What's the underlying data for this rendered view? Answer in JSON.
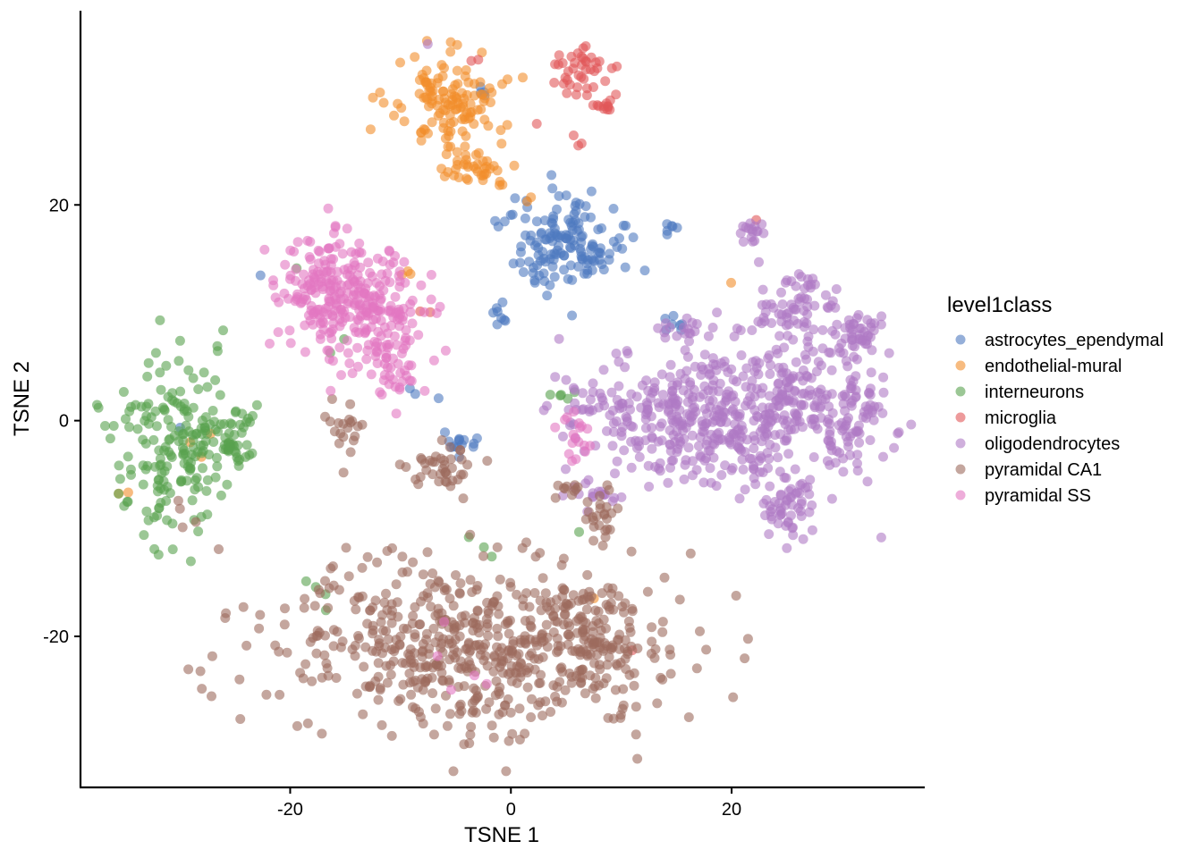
{
  "chart_data": {
    "type": "scatter",
    "title": "",
    "xlabel": "TSNE 1",
    "ylabel": "TSNE 2",
    "xlim": [
      -39,
      37.5
    ],
    "ylim": [
      -34,
      38
    ],
    "x_ticks": [
      -20,
      0,
      20
    ],
    "y_ticks": [
      -20,
      0,
      20
    ],
    "x_tick_labels": [
      "-20",
      "0",
      "20"
    ],
    "y_tick_labels": [
      "-20",
      "0",
      "20"
    ],
    "grid": false,
    "legend_title": "level1class",
    "legend_position": "right",
    "point_alpha": 0.6,
    "series": [
      {
        "name": "astrocytes_ependymal",
        "color": "#4E79C0",
        "clusters": [
          {
            "cx": 5.0,
            "cy": 16.5,
            "sx": 2.6,
            "sy": 2.3,
            "n": 150
          },
          {
            "cx": -1.0,
            "cy": 9.5,
            "sx": 0.3,
            "sy": 0.7,
            "n": 8
          },
          {
            "cx": -4.5,
            "cy": -2.0,
            "sx": 0.6,
            "sy": 0.5,
            "n": 14
          },
          {
            "cx": -2.5,
            "cy": 30.5,
            "sx": 0.3,
            "sy": 0.3,
            "n": 4
          },
          {
            "cx": 14.0,
            "cy": 17.8,
            "sx": 0.6,
            "sy": 0.3,
            "n": 6
          },
          {
            "cx": 14.5,
            "cy": 9.0,
            "sx": 0.6,
            "sy": 0.6,
            "n": 7
          },
          {
            "cx": -22.5,
            "cy": 13.0,
            "sx": 0.2,
            "sy": 0.2,
            "n": 1
          },
          {
            "cx": -30.0,
            "cy": -0.5,
            "sx": 0.2,
            "sy": 0.2,
            "n": 1
          },
          {
            "cx": -8.0,
            "cy": 2.0,
            "sx": 0.8,
            "sy": 0.8,
            "n": 3
          }
        ]
      },
      {
        "name": "endothelial-mural",
        "color": "#F28E2B",
        "clusters": [
          {
            "cx": -5.5,
            "cy": 29.5,
            "sx": 2.4,
            "sy": 2.6,
            "n": 130
          },
          {
            "cx": -3.0,
            "cy": 23.3,
            "sx": 1.5,
            "sy": 0.7,
            "n": 35
          },
          {
            "cx": 1.5,
            "cy": 20.5,
            "sx": 0.3,
            "sy": 0.3,
            "n": 2
          },
          {
            "cx": -10.0,
            "cy": 13.5,
            "sx": 0.5,
            "sy": 0.8,
            "n": 3
          },
          {
            "cx": 20.0,
            "cy": 13.0,
            "sx": 0.2,
            "sy": 0.2,
            "n": 1
          },
          {
            "cx": 7.5,
            "cy": -16.5,
            "sx": 0.2,
            "sy": 0.2,
            "n": 1
          },
          {
            "cx": -28.0,
            "cy": -2.5,
            "sx": 0.8,
            "sy": 0.8,
            "n": 3
          },
          {
            "cx": -35.0,
            "cy": -6.5,
            "sx": 0.5,
            "sy": 0.5,
            "n": 2
          }
        ]
      },
      {
        "name": "interneurons",
        "color": "#59A14F",
        "clusters": [
          {
            "cx": -30.5,
            "cy": -2.5,
            "sx": 3.0,
            "sy": 4.0,
            "n": 180
          },
          {
            "cx": -26.0,
            "cy": -2.0,
            "sx": 1.4,
            "sy": 1.8,
            "n": 45
          },
          {
            "cx": -17.5,
            "cy": -15.5,
            "sx": 1.2,
            "sy": 1.5,
            "n": 4
          },
          {
            "cx": -16.0,
            "cy": 11.5,
            "sx": 3.0,
            "sy": 4.0,
            "n": 3
          },
          {
            "cx": 5.0,
            "cy": 2.5,
            "sx": 0.8,
            "sy": 0.5,
            "n": 5
          },
          {
            "cx": -4.0,
            "cy": -12.0,
            "sx": 1.5,
            "sy": 0.5,
            "n": 3
          },
          {
            "cx": 6.0,
            "cy": -10.5,
            "sx": 0.3,
            "sy": 0.3,
            "n": 1
          }
        ]
      },
      {
        "name": "microglia",
        "color": "#E15759",
        "clusters": [
          {
            "cx": 6.0,
            "cy": 32.5,
            "sx": 1.4,
            "sy": 1.2,
            "n": 40
          },
          {
            "cx": 9.0,
            "cy": 29.2,
            "sx": 0.6,
            "sy": 0.4,
            "n": 12
          },
          {
            "cx": 6.2,
            "cy": 25.8,
            "sx": 0.2,
            "sy": 0.3,
            "n": 3
          },
          {
            "cx": 22.5,
            "cy": 18.5,
            "sx": 0.2,
            "sy": 0.2,
            "n": 1
          },
          {
            "cx": -7.5,
            "cy": 9.5,
            "sx": 0.5,
            "sy": 0.5,
            "n": 2
          },
          {
            "cx": 11.0,
            "cy": -21.5,
            "sx": 0.2,
            "sy": 0.2,
            "n": 1
          },
          {
            "cx": -3.0,
            "cy": 33.5,
            "sx": 0.3,
            "sy": 0.3,
            "n": 2
          },
          {
            "cx": 2.5,
            "cy": 27.8,
            "sx": 0.2,
            "sy": 0.2,
            "n": 1
          }
        ]
      },
      {
        "name": "oligodendrocytes",
        "color": "#AF7AC5",
        "clusters": [
          {
            "cx": 22.5,
            "cy": 1.5,
            "sx": 5.0,
            "sy": 4.0,
            "n": 380
          },
          {
            "cx": 14.0,
            "cy": 0.0,
            "sx": 4.0,
            "sy": 2.5,
            "n": 170
          },
          {
            "cx": 31.5,
            "cy": 0.5,
            "sx": 1.5,
            "sy": 2.0,
            "n": 50
          },
          {
            "cx": 31.5,
            "cy": 8.0,
            "sx": 1.3,
            "sy": 1.1,
            "n": 45
          },
          {
            "cx": 26.0,
            "cy": 11.0,
            "sx": 1.6,
            "sy": 1.4,
            "n": 50
          },
          {
            "cx": 25.0,
            "cy": -8.0,
            "sx": 1.4,
            "sy": 1.6,
            "n": 50
          },
          {
            "cx": 22.0,
            "cy": 17.5,
            "sx": 0.6,
            "sy": 0.6,
            "n": 16
          },
          {
            "cx": 8.5,
            "cy": -6.5,
            "sx": 1.4,
            "sy": 0.6,
            "n": 15
          },
          {
            "cx": 6.0,
            "cy": 1.0,
            "sx": 1.5,
            "sy": 1.5,
            "n": 20
          },
          {
            "cx": 15.5,
            "cy": 8.5,
            "sx": 1.5,
            "sy": 0.5,
            "n": 15
          },
          {
            "cx": -7.5,
            "cy": 35.0,
            "sx": 0.2,
            "sy": 0.2,
            "n": 1
          }
        ]
      },
      {
        "name": "pyramidal CA1",
        "color": "#9C6B5E",
        "clusters": [
          {
            "cx": -3.0,
            "cy": -21.0,
            "sx": 8.5,
            "sy": 4.0,
            "n": 600
          },
          {
            "cx": 7.5,
            "cy": -19.5,
            "sx": 2.5,
            "sy": 2.0,
            "n": 70
          },
          {
            "cx": -6.0,
            "cy": -4.5,
            "sx": 1.5,
            "sy": 1.0,
            "n": 40
          },
          {
            "cx": -15.0,
            "cy": -0.5,
            "sx": 1.0,
            "sy": 1.3,
            "n": 20
          },
          {
            "cx": 8.0,
            "cy": -8.5,
            "sx": 0.8,
            "sy": 1.3,
            "n": 25
          },
          {
            "cx": 5.0,
            "cy": -6.5,
            "sx": 1.0,
            "sy": 0.5,
            "n": 10
          },
          {
            "cx": -28.0,
            "cy": -8.0,
            "sx": 2.5,
            "sy": 1.0,
            "n": 5
          },
          {
            "cx": 7.0,
            "cy": -24.0,
            "sx": 1.0,
            "sy": 1.0,
            "n": 6
          }
        ]
      },
      {
        "name": "pyramidal SS",
        "color": "#E377C2",
        "clusters": [
          {
            "cx": -16.5,
            "cy": 12.0,
            "sx": 2.2,
            "sy": 2.6,
            "n": 190
          },
          {
            "cx": -11.5,
            "cy": 9.5,
            "sx": 2.0,
            "sy": 2.8,
            "n": 140
          },
          {
            "cx": -10.5,
            "cy": 3.5,
            "sx": 1.0,
            "sy": 0.7,
            "n": 12
          },
          {
            "cx": 6.0,
            "cy": -1.5,
            "sx": 1.0,
            "sy": 1.2,
            "n": 18
          },
          {
            "cx": -2.5,
            "cy": -22.5,
            "sx": 4.0,
            "sy": 1.5,
            "n": 5
          }
        ]
      }
    ]
  }
}
